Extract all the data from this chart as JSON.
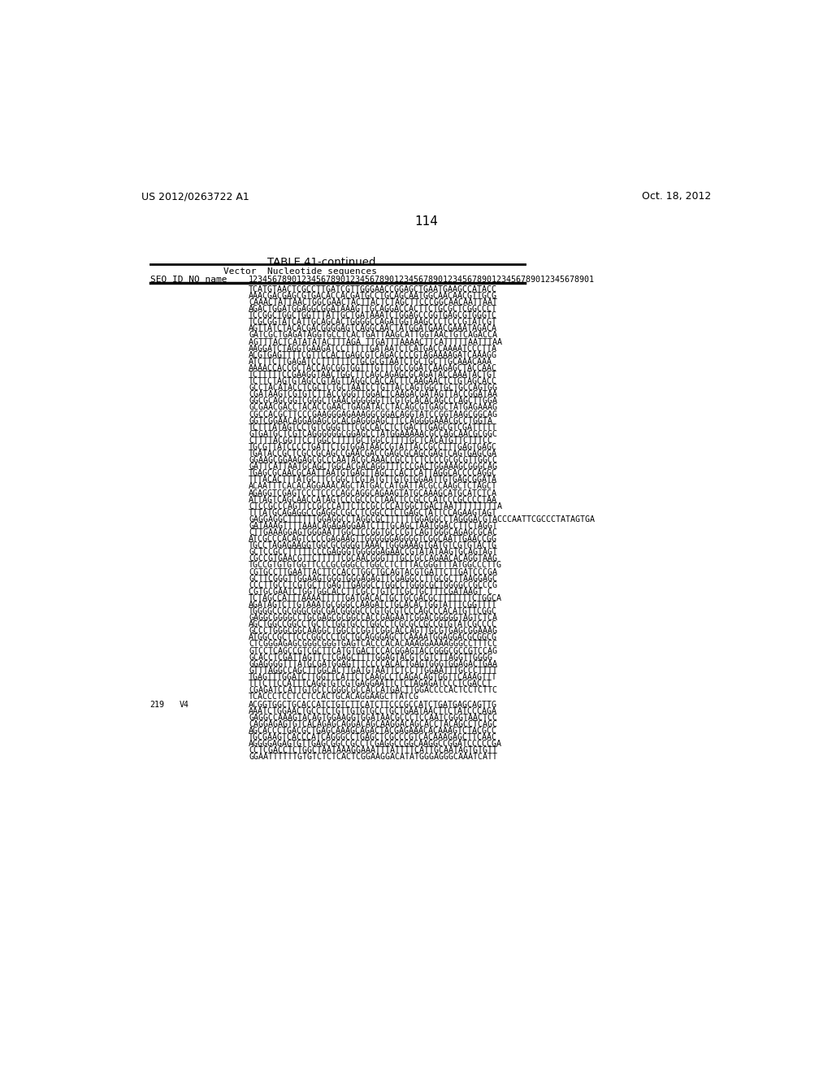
{
  "header_left": "US 2012/0263722 A1",
  "header_right": "Oct. 18, 2012",
  "page_number": "114",
  "table_title": "TABLE 41-continued",
  "col_header1": "Vector  Nucleotide sequences",
  "col_header2": "SEQ ID NO name    1234567890123456789012345678901234567890123456789012345678901",
  "seq_lines": [
    "TCATGTAACTCGCCTTGATCGTTGGGAACCGGAGCTGAATGAAGCCATACC",
    "AAACGACGAGCGTGACACCACGATGCCTGCAGCAATGGCAACAACGTTGCG",
    "CAAACTATTAACTGGCGAACTACTTACTCTAGCTTCCCGGCAACAATTAAT",
    "AGACTGGATGGAGGCGGATAAAGTTGCAGGACCACTTCTGCGCTCGGCCCT",
    "TCCGGCTGGCTGGTTTATTGCTGATAAATCTGGAGCCGGTGAGCGTGGGTC",
    "TCGCGGTATCATTGCAGCACTGGGGCCAGATGGTAAGCCCTCCCGTATCGT",
    "AGTTATCTACACGACGGGGAGTCAGGCAACTATGGATGAACGAAATAGACA",
    "GATCGCTGAGATAGGTGCCTCACTGATTAAGCATTGGTAACTGTCAGACCA",
    "AGTTTACTCATATATACTTTAGA TTGATTTAAAACTTCATTTTTAATTTAA",
    "AAGGATCTAGGTGAAGATCCTTTTTGATAATCTCATGACCAAAATCCCTTA",
    "ACGTGAGTTTTCGTTCCACTGAGCGTCAGACCCCGTAGAAAAGATCAAAGG",
    "ATCTTCTTGAGATCCTTTTTTCTGCGCGTAATCTGCTGCTTGCAAACAAA",
    "AAAACCACCGCTACCAGCGGTGGTTTGTTTGCCGGATCAAGAGCTACCAAC",
    "TCTTTTTCCGAAGGTAACTGGCTTCAGCAGAGCGCAGATACCAAATACTGT",
    "TCTTCTAGTGTAGCCGTAGTTAGGCCACCACTTCAAGAACTCTGTAGCACC",
    "GCCTACATACCTCGCTCTGCTAATCCTGTTACCAGTGGCTGCTGCCAGTGG",
    "CGATAAGTCGTGTCTTACCGGGTTGGACTCAAGACGATAGTTACCGGATAA",
    "GGCGCAGCGGTCGGGCTGAACGGGGGGTTCGTGCACACAGCCCAGCTTGGA",
    "GCGAACGACCTACACCGAACTGAGATACCTACAGCGTGAGCTATGAGAAAG",
    "CGCCACGCTTCCCGAAGGGAGAAAGGCGGACAGGTATCCGGTAAGCGGCAG",
    "GGTCGGAACAGGAGAGCGCACGAGGGAGCTTCCAGGGGAAACGCCTGGTA",
    "TCTTTATAGTCCTGTCGGGTTTCGCCACCTCTGACTTGAGCGTCGATTTTT",
    "GTGATGCTCGTCAGGGGGGCGGAGCCTATGGAAAAACGCCAGCAACGCGGC",
    "CTTTTACGGTTCCTGGCCTTTTGCTGGCCTTTTGCTCACATGTTCTTTCC",
    "TGCGTTATCCCCTGATTCTGTGGATAACCGTATTACCGCCTTTGAGTGAGC",
    "TGATACCGCTCGCCGCAGCCGAACGACCGAGCGCAGCGAGTCAGTGAGCGA",
    "GGAAGCGGAAGAGCGCCCAATACGCAAACCGCCTCTCCCCGCGCGTTGGCC",
    "GATTCATTAATGCAGCTGGCACGACAGGTTTCCCGACTGGAAAGCGGGCAG",
    "TGAGCGCAACGCAATTAATGTGAGTTAGCTCACTCATTAGGCACCCCAGGC",
    "TTTACACTTTATGCTTCCGGCTCGTATGTTGTGTGGAATTGTGAGCGGATA",
    "ACAATTTCACACAGGAAACAGCTATGACCATGATTACGCCAAGCTCTAGCT",
    "AGAGGTCGAGTCCCTCCCCAGCAGGCAGAAGTATGCAAAGCATGCATCTCA",
    "ATTAGTCAGCAACCATAGTCCCGCCCCTAACTCCGCCCATCCCGCCCCTAA",
    "CTCCGCCCAGTTCCGCCCATTCTCCGCCCCATGGCTGACTAATTTTTTTTTA",
    "TTTATGCAGAGGCCGAGGCCGCCTCGGCCTCTGAGCTATTCCAGAAGTAGT",
    "GAGGAGGCTTTTTTGGAGGCCTAGGCGCTTTTTTGGAGGCCTAGGGACGTACCCAATTCGCCCTATAGTGA",
    "GATAAAGTTTTAAACAGAGAGGAATCTTTGCAGCTAATGGACCTTCTAGGT",
    "CTTGAAAGGAGTGGGAATTGGCTCCGGTGCCCGTCAGTGGGCAGAGCGCAC",
    "ATCGCCCACAGTCCCCGAGAAGTTGGGGGGAGGGGTCGGCAATTGAACCGG",
    "TGCCTAGAGAAGGTGGCGCGGGGTAAACTGGGAAAGTGATGTCGTGTACTG",
    "GCTCCGCCTTTTTCCCGAGGGTGGGGGAGAACCGTATATAAGTGCAGTAGT",
    "CGCCGTGAACGTTCTTTTTCGCAACGGGTTTGCCGCCAGAACACAGGTAAG",
    "TGCCGTGTGTGGTTCCCGCGGGCCTGGCCTCTTTACGGGTTTATGGCCCTTG",
    "CGTGCCTTGAATTACTTCCACCTGGCTGCAGTACGTGATTCTTGATCCCGA",
    "GCTTCGGGTTGGAAGTGGGTGGGAGAGTTCGAGGCCTTGCGCTTAAGGAGC",
    "CCCTTGCCTCGTGCTTGAGTTGAGGCCTGGCCTGGGCGCTGGGGCCGCCCG",
    "CGTGCGAATCTGGTGGCACCTTCGCCTGTCTCGCTGCTTTCGATAAGT C",
    "TCTAGCCATTTAAAATTTTTGATGACACTGCTGCGACGCTTTTTTTCTGGCA",
    "AGATAGTCTTGTAAATGCGGGCCAAGATCTGCACACTGGTATTTCGGTTTT",
    "TGGGGCCGCGGGCGGCGACGGGGCCCGTGCGTCCCAGCCCACATGTTCGGC",
    "GAGGCGGGGCCTGCGAGCGCGGCCACCGAGAATCGGACGGGGGTAGTCTCA",
    "AGCTGGCCGGCCTGCTCTGGTGCCTGGCCTCGCGCCGCCGTGTATCGCCCC",
    "GCCCTGGGCGGCAAGGCTGGCCCGGTCGGCACCAGTTGCGTGAGCGGAAAG",
    "ATGGCCGCTTCCCGGCCCTGCTGCAGGGAGCTCAAAATGGAGGACGCGGCG",
    "CTCGGGAGAGCGGGCGGGTGAGTCACCCACACAAAGGAAAAGGGCCTTTCC",
    "GTCCTCAGCCGTCGCTTCATGTGACTCCACGGAGTACCGGGCGCCGTCCAG",
    "GCACCTCGATTAGTTCTCGAGCTTTTGGAGTACGTCGTCTTAGGTTGGGG",
    "GGAGGGGTTTATGCGATGGAGTTTCCCCACACTGAGTGGGTGGAGACTGAA",
    "GTTTAGGCCAGCTTGGCACTTGATGTAATTCTCCTTGGAATTTGCCCTTTT",
    "TGAGTTTGGATCTTGGTTCATTCTCAAGCCTCAGACAGTGGTTCAAAGTTT",
    "TTTCTTCCATTTCAGGTGTCGTGAGGAATTCTCTAGAGATCCCTCGACCT",
    "CGAGATCCATTGTGCCCGGGCGCCACCATGACTTGGACCCCACTCCTCTTC",
    "TCACCCTCCTCCTCCACTGCACAGGAAGCTTATCG"
  ],
  "seq219_label": "219",
  "seq219_name": "V4",
  "seq219_lines": [
    "ACGGTGGCTGCACCATCTGTCTTCATCTTCCCGCCATCTGATGAGCAGTTG",
    "AAATCTGGAACTGCCTCTGTTGTGTGCCTGCTGAATAACTTCTATCCCAGA",
    "GAGGCCAAAGTACAGTGGAAGGTGGATAACGCCCTCCAATCGGGTAACTCC",
    "CAGGAGAGTGTCACAGAGCAGGACAGCAAGGACAGCACCTACAGCCTCAGC",
    "AGCACCCTGACGCTGAGCAAAGCAGACTACGAGAAACACAAAGTCTACGCC",
    "TGCGAAGTCACCCATCAGGGCCTGAGCTCGCCCGTCACAAAGAGCTTCAAC",
    "AGGGGAGAGTGTTGAGCGGCCGCCTCGAGGCCGGCAAGGCCGGATCCCCCGA",
    "CCTCGACCTCTGGCTAATAAAGGAAATTTATTTTCATTGCAATAGTGTGTT",
    "GGAATTTTTTGTGTCTCTCACTCGGAAGGACATATGGGAGGGCAAATCATT"
  ],
  "background_color": "#ffffff",
  "text_color": "#000000"
}
